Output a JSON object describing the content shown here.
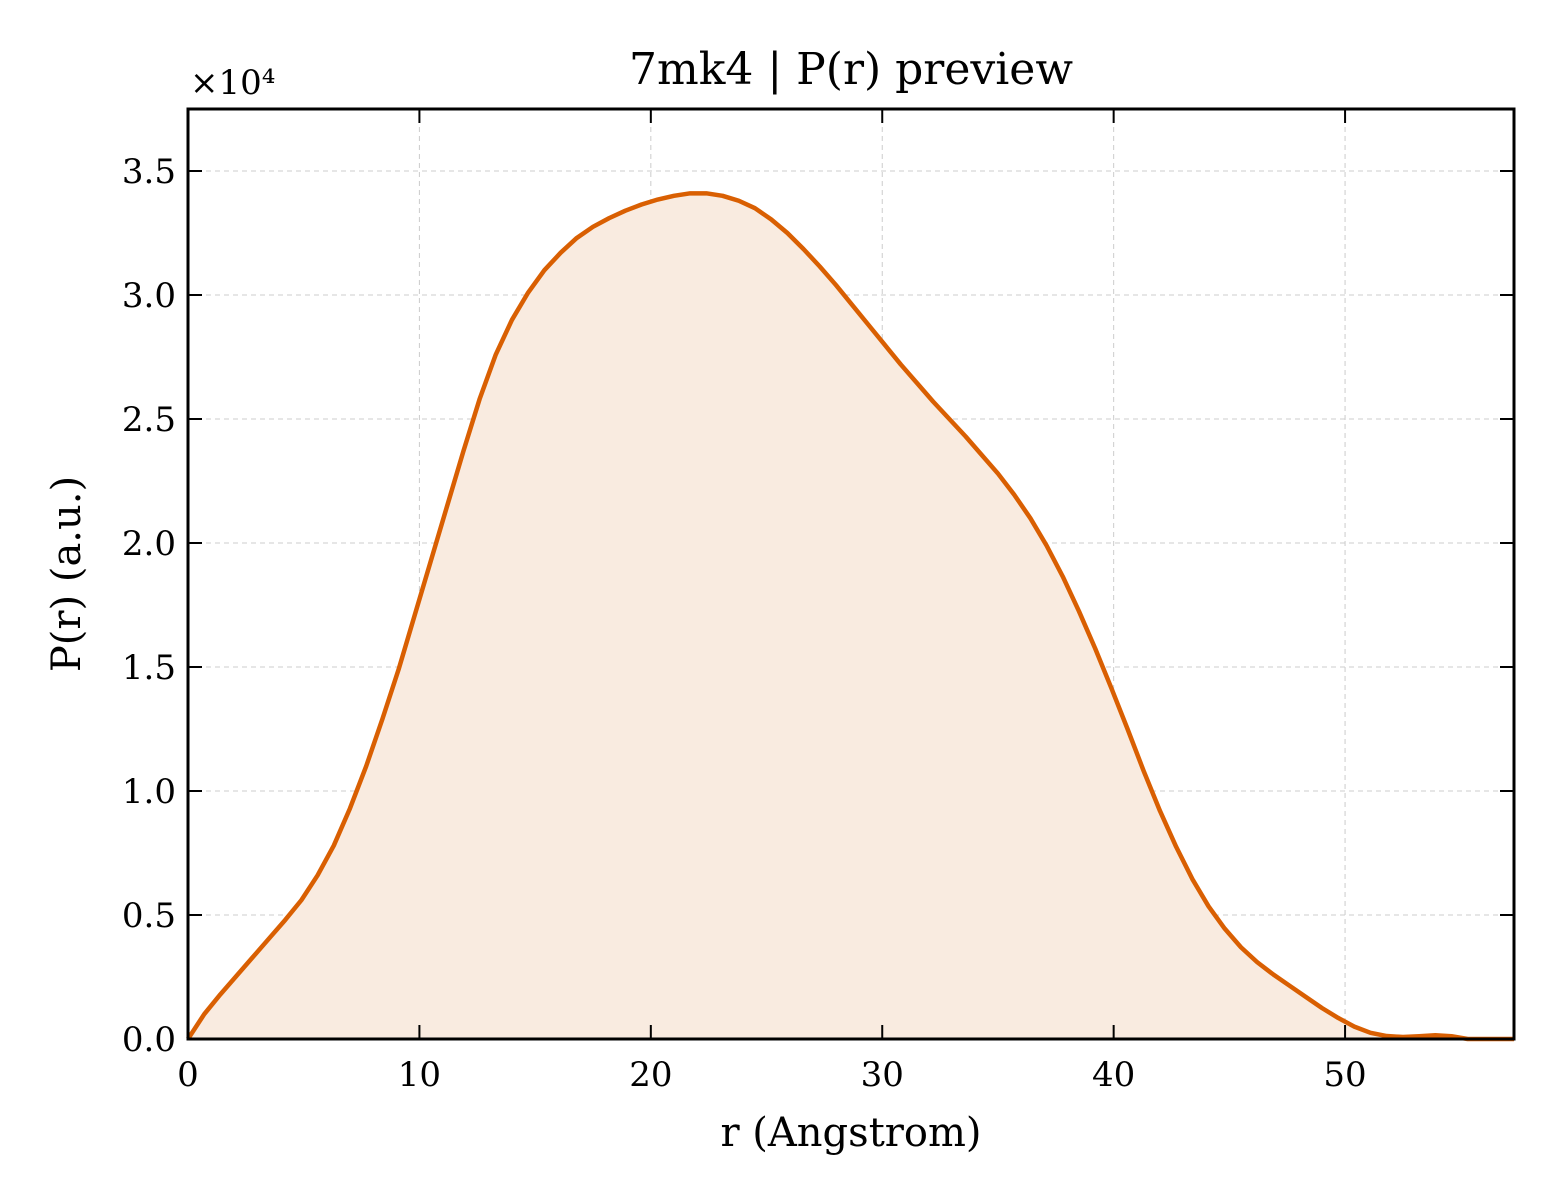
{
  "chart_data": {
    "type": "area",
    "title": "7mk4 | P(r) preview",
    "xlabel": "r (Angstrom)",
    "ylabel": "P(r) (a.u.)",
    "y_multiplier_label": "×10⁴",
    "xlim": [
      0,
      57.3
    ],
    "ylim": [
      0,
      37500
    ],
    "x_ticks": [
      0,
      10,
      20,
      30,
      40,
      50
    ],
    "x_tick_labels": [
      "0",
      "10",
      "20",
      "30",
      "40",
      "50"
    ],
    "y_ticks": [
      0,
      5000,
      10000,
      15000,
      20000,
      25000,
      30000,
      35000
    ],
    "y_tick_labels": [
      "0.0",
      "0.5",
      "1.0",
      "1.5",
      "2.0",
      "2.5",
      "3.0",
      "3.5"
    ],
    "grid": true,
    "series": [
      {
        "color": "#d95f02",
        "fill_color": "#f9ebe0",
        "x": [
          0,
          0.7,
          1.4,
          2.1,
          2.8,
          3.5,
          4.2,
          4.9,
          5.6,
          6.3,
          7.0,
          7.7,
          8.4,
          9.1,
          9.8,
          10.5,
          11.2,
          11.9,
          12.6,
          13.3,
          14.0,
          14.7,
          15.4,
          16.1,
          16.8,
          17.5,
          18.2,
          18.9,
          19.6,
          20.3,
          21.0,
          21.7,
          22.4,
          23.1,
          23.8,
          24.5,
          25.2,
          25.9,
          26.6,
          27.3,
          28.0,
          28.7,
          29.4,
          30.1,
          30.8,
          31.5,
          32.2,
          32.9,
          33.6,
          34.3,
          35.0,
          35.7,
          36.4,
          37.1,
          37.8,
          38.5,
          39.2,
          39.9,
          40.6,
          41.3,
          42.0,
          42.7,
          43.4,
          44.1,
          44.8,
          45.5,
          46.2,
          46.9,
          47.6,
          48.3,
          49.0,
          49.7,
          50.4,
          51.1,
          51.8,
          52.5,
          53.2,
          53.9,
          54.6,
          55.3,
          56.0,
          56.7,
          57.3
        ],
        "y": [
          0,
          1000,
          1800,
          2550,
          3300,
          4050,
          4800,
          5600,
          6600,
          7800,
          9300,
          11000,
          12900,
          14900,
          17100,
          19300,
          21500,
          23700,
          25800,
          27600,
          29000,
          30100,
          31000,
          31700,
          32300,
          32750,
          33100,
          33400,
          33650,
          33850,
          34000,
          34100,
          34100,
          34000,
          33800,
          33500,
          33050,
          32500,
          31850,
          31150,
          30400,
          29600,
          28800,
          28000,
          27200,
          26450,
          25700,
          25000,
          24300,
          23550,
          22800,
          21950,
          21000,
          19900,
          18650,
          17250,
          15750,
          14150,
          12500,
          10800,
          9200,
          7750,
          6450,
          5350,
          4450,
          3700,
          3100,
          2600,
          2150,
          1700,
          1250,
          850,
          500,
          250,
          120,
          80,
          110,
          150,
          110,
          0,
          0,
          0,
          0
        ]
      }
    ]
  }
}
